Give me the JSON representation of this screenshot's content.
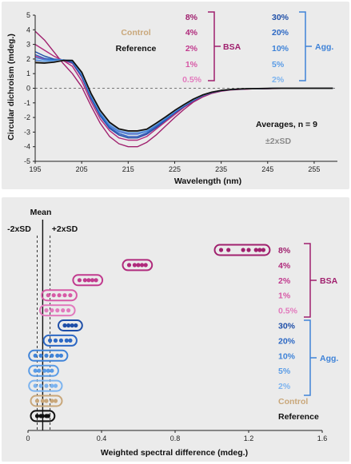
{
  "colors": {
    "reference": "#111111",
    "control": "#c9a77a",
    "bsa_8": "#a0206e",
    "bsa_4": "#b02a7c",
    "bsa_2": "#c13a8e",
    "bsa_1": "#d75aa6",
    "bsa_0_5": "#e27abd",
    "agg_30": "#1f4fa8",
    "agg_20": "#2c68c4",
    "agg_10": "#3f83d8",
    "agg_5": "#5a9ce6",
    "agg_2": "#7db4ef",
    "bsa_bracket": "#a0206e",
    "agg_bracket": "#3f83d8",
    "sd_text": "#8a8a8a"
  },
  "chart_data": [
    {
      "type": "line",
      "xlabel": "Wavelength (nm)",
      "ylabel": "Circular dichroism (mdeg.)",
      "xlim": [
        195,
        260
      ],
      "ylim": [
        -5,
        5
      ],
      "xticks": [
        195,
        205,
        215,
        225,
        235,
        245,
        255
      ],
      "yticks": [
        5,
        4,
        3,
        2,
        1,
        0,
        -1,
        -2,
        -3,
        -4,
        -5
      ],
      "zero_line": "dashed",
      "legend": {
        "control": "Control",
        "reference": "Reference",
        "bsa_labels": [
          "8%",
          "4%",
          "2%",
          "1%",
          "0.5%"
        ],
        "bsa_group": "BSA",
        "agg_labels": [
          "30%",
          "20%",
          "10%",
          "5%",
          "2%"
        ],
        "agg_group": "Agg."
      },
      "annotations": {
        "averages": "Averages, n = 9",
        "sd": "±2xSD"
      },
      "x": [
        195,
        197,
        199,
        201,
        203,
        205,
        207,
        209,
        211,
        213,
        215,
        217,
        219,
        221,
        223,
        225,
        227,
        229,
        231,
        233,
        235,
        237,
        239,
        241,
        243,
        245,
        247,
        249,
        251,
        253,
        255,
        257,
        259
      ],
      "series": [
        {
          "name": "8%",
          "color_key": "bsa_8",
          "values": [
            3.9,
            3.3,
            2.5,
            1.7,
            1.0,
            0.1,
            -1.2,
            -2.4,
            -3.3,
            -3.8,
            -4.0,
            -4.0,
            -3.7,
            -3.2,
            -2.6,
            -2.0,
            -1.45,
            -0.95,
            -0.6,
            -0.35,
            -0.2,
            -0.12,
            -0.08,
            -0.05,
            -0.03,
            -0.02,
            -0.02,
            -0.01,
            0.0,
            0.0,
            0.0,
            0.0,
            0.0
          ]
        },
        {
          "name": "4%",
          "color_key": "bsa_4",
          "values": [
            3.0,
            2.6,
            2.2,
            1.9,
            1.5,
            0.5,
            -0.9,
            -2.1,
            -2.9,
            -3.4,
            -3.55,
            -3.55,
            -3.3,
            -2.8,
            -2.3,
            -1.8,
            -1.3,
            -0.9,
            -0.55,
            -0.32,
            -0.18,
            -0.1,
            -0.07,
            -0.05,
            -0.03,
            -0.02,
            -0.01,
            0.0,
            0.0,
            0.0,
            0.0,
            0.0,
            0.0
          ]
        },
        {
          "name": "2%",
          "color_key": "bsa_2",
          "values": [
            2.2,
            2.0,
            1.9,
            1.9,
            1.7,
            0.75,
            -0.7,
            -1.9,
            -2.7,
            -3.1,
            -3.3,
            -3.3,
            -3.1,
            -2.65,
            -2.15,
            -1.7,
            -1.25,
            -0.85,
            -0.52,
            -0.3,
            -0.17,
            -0.1,
            -0.06,
            -0.04,
            -0.03,
            -0.02,
            -0.01,
            0.0,
            0.0,
            0.0,
            0.0,
            0.0,
            0.0
          ]
        },
        {
          "name": "1%",
          "color_key": "bsa_1",
          "values": [
            1.9,
            1.8,
            1.85,
            1.9,
            1.8,
            0.9,
            -0.55,
            -1.75,
            -2.55,
            -2.95,
            -3.1,
            -3.1,
            -2.9,
            -2.5,
            -2.05,
            -1.6,
            -1.2,
            -0.8,
            -0.5,
            -0.3,
            -0.16,
            -0.1,
            -0.06,
            -0.04,
            -0.02,
            -0.01,
            0.0,
            0.0,
            0.0,
            0.0,
            0.0,
            0.0,
            0.0
          ]
        },
        {
          "name": "0.5%",
          "color_key": "bsa_0_5",
          "values": [
            1.8,
            1.75,
            1.8,
            1.9,
            1.85,
            1.0,
            -0.45,
            -1.65,
            -2.45,
            -2.85,
            -3.0,
            -3.0,
            -2.85,
            -2.45,
            -2.0,
            -1.55,
            -1.15,
            -0.78,
            -0.48,
            -0.28,
            -0.15,
            -0.09,
            -0.05,
            -0.03,
            -0.02,
            -0.01,
            0.0,
            0.0,
            0.0,
            0.0,
            0.0,
            0.0,
            0.0
          ]
        },
        {
          "name": "30%",
          "color_key": "agg_30",
          "values": [
            2.5,
            2.2,
            2.0,
            1.95,
            1.75,
            0.8,
            -0.7,
            -1.9,
            -2.75,
            -3.2,
            -3.4,
            -3.4,
            -3.15,
            -2.7,
            -2.2,
            -1.7,
            -1.25,
            -0.85,
            -0.52,
            -0.3,
            -0.17,
            -0.1,
            -0.06,
            -0.04,
            -0.03,
            -0.02,
            -0.01,
            0.0,
            0.0,
            0.0,
            0.0,
            0.0,
            0.0
          ]
        },
        {
          "name": "20%",
          "color_key": "agg_20",
          "values": [
            2.3,
            2.05,
            1.95,
            1.95,
            1.8,
            0.9,
            -0.6,
            -1.8,
            -2.65,
            -3.1,
            -3.3,
            -3.3,
            -3.05,
            -2.6,
            -2.15,
            -1.65,
            -1.2,
            -0.82,
            -0.5,
            -0.29,
            -0.16,
            -0.1,
            -0.06,
            -0.04,
            -0.02,
            -0.01,
            0.0,
            0.0,
            0.0,
            0.0,
            0.0,
            0.0,
            0.0
          ]
        },
        {
          "name": "10%",
          "color_key": "agg_10",
          "values": [
            2.1,
            1.95,
            1.9,
            1.95,
            1.85,
            0.95,
            -0.5,
            -1.7,
            -2.55,
            -2.98,
            -3.15,
            -3.15,
            -2.95,
            -2.52,
            -2.08,
            -1.6,
            -1.18,
            -0.8,
            -0.49,
            -0.28,
            -0.16,
            -0.09,
            -0.05,
            -0.03,
            -0.02,
            -0.01,
            0.0,
            0.0,
            0.0,
            0.0,
            0.0,
            0.0,
            0.0
          ]
        },
        {
          "name": "5%",
          "color_key": "agg_5",
          "values": [
            1.95,
            1.85,
            1.85,
            1.95,
            1.9,
            1.0,
            -0.45,
            -1.62,
            -2.45,
            -2.88,
            -3.05,
            -3.05,
            -2.88,
            -2.47,
            -2.03,
            -1.57,
            -1.16,
            -0.78,
            -0.48,
            -0.28,
            -0.15,
            -0.09,
            -0.05,
            -0.03,
            -0.02,
            -0.01,
            0.0,
            0.0,
            0.0,
            0.0,
            0.0,
            0.0,
            0.0
          ]
        },
        {
          "name": "2%",
          "color_key": "agg_2",
          "values": [
            1.85,
            1.8,
            1.82,
            1.93,
            1.9,
            1.05,
            -0.4,
            -1.58,
            -2.4,
            -2.84,
            -3.0,
            -3.0,
            -2.85,
            -2.45,
            -2.0,
            -1.55,
            -1.15,
            -0.78,
            -0.48,
            -0.28,
            -0.15,
            -0.09,
            -0.05,
            -0.03,
            -0.02,
            -0.01,
            0.0,
            0.0,
            0.0,
            0.0,
            0.0,
            0.0,
            0.0
          ]
        },
        {
          "name": "Control",
          "color_key": "control",
          "values": [
            1.8,
            1.75,
            1.8,
            1.92,
            1.9,
            1.08,
            -0.38,
            -1.55,
            -2.36,
            -2.8,
            -2.95,
            -2.95,
            -2.82,
            -2.42,
            -1.98,
            -1.53,
            -1.13,
            -0.76,
            -0.47,
            -0.27,
            -0.15,
            -0.09,
            -0.05,
            -0.03,
            -0.02,
            -0.01,
            0.0,
            0.0,
            0.0,
            0.0,
            0.0,
            0.0,
            0.0
          ]
        },
        {
          "name": "Reference",
          "color_key": "reference",
          "values": [
            1.75,
            1.72,
            1.78,
            1.9,
            1.9,
            1.1,
            -0.35,
            -1.52,
            -2.33,
            -2.78,
            -2.92,
            -2.92,
            -2.8,
            -2.4,
            -1.97,
            -1.52,
            -1.12,
            -0.75,
            -0.46,
            -0.27,
            -0.15,
            -0.09,
            -0.05,
            -0.03,
            -0.02,
            -0.01,
            0.0,
            0.0,
            0.0,
            0.0,
            0.0,
            0.0,
            0.0
          ]
        }
      ]
    },
    {
      "type": "scatter",
      "xlabel": "Weighted spectral difference (mdeg.)",
      "xlim": [
        0,
        1.6
      ],
      "xticks": [
        "0",
        "0.4",
        "0.8",
        "1.2",
        "1.6"
      ],
      "xtick_values": [
        0,
        0.4,
        0.8,
        1.2,
        1.6
      ],
      "mean_label": "Mean",
      "mean_value": 0.08,
      "minus_sd_label": "-2xSD",
      "minus_sd_value": 0.05,
      "plus_sd_label": "+2xSD",
      "plus_sd_value": 0.12,
      "bsa_group": "BSA",
      "agg_group": "Agg.",
      "rows": [
        {
          "label": "8%",
          "color_key": "bsa_8",
          "values": [
            1.05,
            1.09,
            1.17,
            1.2,
            1.24,
            1.26,
            1.28
          ]
        },
        {
          "label": "4%",
          "color_key": "bsa_4",
          "values": [
            0.55,
            0.58,
            0.6,
            0.62,
            0.64
          ]
        },
        {
          "label": "2%",
          "color_key": "bsa_2",
          "values": [
            0.28,
            0.31,
            0.33,
            0.35,
            0.37
          ]
        },
        {
          "label": "1%",
          "color_key": "bsa_1",
          "values": [
            0.11,
            0.14,
            0.17,
            0.2,
            0.23
          ]
        },
        {
          "label": "0.5%",
          "color_key": "bsa_0_5",
          "values": [
            0.1,
            0.13,
            0.16,
            0.19,
            0.22
          ]
        },
        {
          "label": "30%",
          "color_key": "agg_30",
          "values": [
            0.2,
            0.22,
            0.24,
            0.26
          ]
        },
        {
          "label": "20%",
          "color_key": "agg_20",
          "values": [
            0.12,
            0.15,
            0.18,
            0.21,
            0.23
          ]
        },
        {
          "label": "10%",
          "color_key": "agg_10",
          "values": [
            0.04,
            0.07,
            0.1,
            0.13,
            0.16,
            0.18
          ]
        },
        {
          "label": "5%",
          "color_key": "agg_5",
          "values": [
            0.04,
            0.06,
            0.09,
            0.11,
            0.13
          ]
        },
        {
          "label": "2%",
          "color_key": "agg_2",
          "values": [
            0.04,
            0.07,
            0.1,
            0.13,
            0.15
          ]
        },
        {
          "label": "Control",
          "color_key": "control",
          "values": [
            0.05,
            0.08,
            0.1,
            0.13,
            0.15
          ]
        },
        {
          "label": "Reference",
          "color_key": "reference",
          "values": [
            0.05,
            0.07,
            0.08,
            0.1,
            0.11
          ]
        }
      ]
    }
  ]
}
